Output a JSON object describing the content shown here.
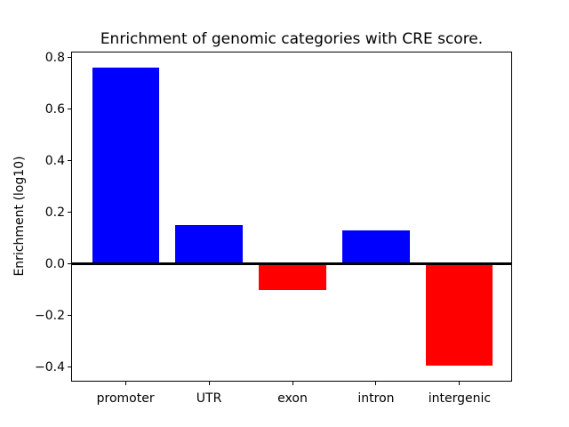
{
  "chart_data": {
    "type": "bar",
    "title": "Enrichment of genomic categories with CRE score.",
    "xlabel": "",
    "ylabel": "Enrichment (log10)",
    "categories": [
      "promoter",
      "UTR",
      "exon",
      "intron",
      "intergenic"
    ],
    "values": [
      0.76,
      0.15,
      -0.1,
      0.13,
      -0.395
    ],
    "bar_colors": [
      "#0000ff",
      "#0000ff",
      "#ff0000",
      "#0000ff",
      "#ff0000"
    ],
    "positive_color": "#0000ff",
    "negative_color": "#ff0000",
    "yticks": [
      0.8,
      0.6,
      0.4,
      0.2,
      0.0,
      -0.2,
      -0.4
    ],
    "ytick_labels": [
      "0.8",
      "0.6",
      "0.4",
      "0.2",
      "0.0",
      "−0.2",
      "−0.4"
    ],
    "ylim": [
      -0.46,
      0.82
    ],
    "xlim": [
      -0.64,
      4.64
    ],
    "bar_width": 0.8,
    "zero_line": true,
    "zero_line_color": "#000000",
    "grid": false,
    "legend": null,
    "background_color": "#ffffff",
    "spine_color": "#000000"
  }
}
